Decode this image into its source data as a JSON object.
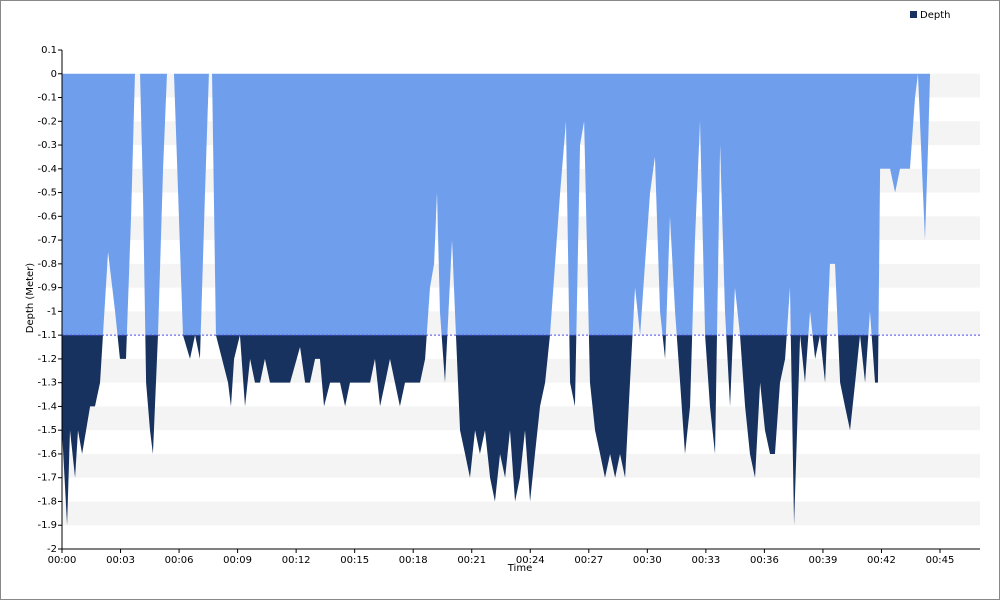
{
  "chart_data": {
    "type": "area",
    "x_label": "Time",
    "y_label": "Depth (Meter)",
    "legend": "top-right",
    "stripes": true,
    "threshold": -1.1,
    "threshold_color": "#4a4ae8",
    "above_threshold_color": "#6f9fec",
    "x": [
      0,
      0.26,
      0.41,
      0.67,
      0.82,
      1.03,
      1.44,
      1.69,
      1.95,
      2.36,
      2.72,
      2.97,
      3.28,
      3.54,
      3.74,
      4.0,
      4.15,
      4.31,
      4.51,
      4.66,
      4.92,
      5.18,
      5.38,
      5.74,
      5.95,
      6.2,
      6.56,
      6.82,
      7.07,
      7.33,
      7.53,
      7.69,
      7.89,
      8.2,
      8.51,
      8.66,
      8.82,
      9.12,
      9.38,
      9.64,
      9.89,
      10.15,
      10.4,
      10.66,
      11.17,
      11.69,
      12.2,
      12.46,
      12.71,
      12.97,
      13.22,
      13.43,
      13.74,
      14.25,
      14.51,
      14.76,
      15.79,
      16.04,
      16.3,
      16.56,
      16.81,
      17.32,
      17.58,
      17.84,
      18.09,
      18.35,
      18.61,
      18.86,
      19.07,
      19.22,
      19.37,
      19.63,
      19.99,
      20.14,
      20.4,
      20.66,
      20.91,
      21.17,
      21.42,
      21.68,
      21.94,
      22.19,
      22.45,
      22.71,
      22.96,
      23.22,
      23.47,
      23.73,
      23.99,
      24.24,
      24.5,
      24.76,
      25.01,
      25.53,
      25.83,
      26.04,
      26.29,
      26.55,
      26.76,
      27.06,
      27.32,
      27.58,
      27.83,
      28.09,
      28.35,
      28.6,
      28.86,
      29.11,
      29.37,
      29.63,
      29.88,
      30.14,
      30.39,
      30.65,
      30.91,
      31.16,
      31.42,
      31.68,
      31.93,
      32.19,
      32.44,
      32.7,
      32.96,
      33.21,
      33.47,
      33.73,
      33.98,
      34.24,
      34.49,
      34.75,
      35.01,
      35.26,
      35.52,
      35.78,
      36.03,
      36.29,
      36.54,
      36.8,
      37.06,
      37.31,
      37.52,
      37.83,
      38.08,
      38.34,
      38.6,
      38.85,
      39.11,
      39.36,
      39.62,
      39.88,
      40.13,
      40.39,
      40.65,
      40.9,
      41.16,
      41.41,
      41.67,
      41.82,
      41.93,
      42.18,
      42.44,
      42.7,
      42.95,
      43.46,
      43.72,
      43.87,
      44.23,
      44.39,
      44.49
    ],
    "series": [
      {
        "name": "Depth",
        "color": "#17325f",
        "values": [
          -1.5,
          -1.9,
          -1.5,
          -1.7,
          -1.5,
          -1.6,
          -1.4,
          -1.4,
          -1.3,
          -0.75,
          -1.0,
          -1.2,
          -1.2,
          -0.6,
          0,
          0,
          -0.5,
          -1.3,
          -1.5,
          -1.6,
          -1.1,
          -0.4,
          0,
          0,
          -0.5,
          -1.1,
          -1.2,
          -1.1,
          -1.2,
          -0.5,
          0,
          0,
          -1.1,
          -1.2,
          -1.3,
          -1.4,
          -1.2,
          -1.1,
          -1.4,
          -1.2,
          -1.3,
          -1.3,
          -1.2,
          -1.3,
          -1.3,
          -1.3,
          -1.15,
          -1.3,
          -1.3,
          -1.2,
          -1.2,
          -1.4,
          -1.3,
          -1.3,
          -1.4,
          -1.3,
          -1.3,
          -1.2,
          -1.4,
          -1.3,
          -1.2,
          -1.4,
          -1.3,
          -1.3,
          -1.3,
          -1.3,
          -1.2,
          -0.9,
          -0.8,
          -0.5,
          -1.0,
          -1.3,
          -0.7,
          -1.0,
          -1.5,
          -1.6,
          -1.7,
          -1.5,
          -1.6,
          -1.5,
          -1.7,
          -1.8,
          -1.6,
          -1.7,
          -1.5,
          -1.8,
          -1.7,
          -1.5,
          -1.8,
          -1.6,
          -1.4,
          -1.3,
          -1.1,
          -0.5,
          -0.2,
          -1.3,
          -1.4,
          -0.3,
          -0.2,
          -1.3,
          -1.5,
          -1.6,
          -1.7,
          -1.6,
          -1.7,
          -1.6,
          -1.7,
          -1.3,
          -0.9,
          -1.1,
          -0.8,
          -0.5,
          -0.35,
          -1.0,
          -1.2,
          -0.6,
          -1.0,
          -1.3,
          -1.6,
          -1.4,
          -0.7,
          -0.2,
          -1.1,
          -1.4,
          -1.6,
          -0.3,
          -1.0,
          -1.4,
          -0.9,
          -1.1,
          -1.4,
          -1.6,
          -1.7,
          -1.3,
          -1.5,
          -1.6,
          -1.6,
          -1.3,
          -1.2,
          -0.9,
          -1.9,
          -1.1,
          -1.3,
          -1.0,
          -1.2,
          -1.1,
          -1.3,
          -0.8,
          -0.8,
          -1.3,
          -1.4,
          -1.5,
          -1.3,
          -1.1,
          -1.3,
          -1.0,
          -1.3,
          -1.3,
          -0.4,
          -0.4,
          -0.4,
          -0.5,
          -0.4,
          -0.4,
          -0.1,
          0,
          -0.7,
          -0.3,
          0
        ]
      }
    ],
    "xlim": [
      0,
      47.05
    ],
    "xticks": [
      {
        "value": 0,
        "label": "00:00"
      },
      {
        "value": 3,
        "label": "00:03"
      },
      {
        "value": 6,
        "label": "00:06"
      },
      {
        "value": 9,
        "label": "00:09"
      },
      {
        "value": 12,
        "label": "00:12"
      },
      {
        "value": 15,
        "label": "00:15"
      },
      {
        "value": 18,
        "label": "00:18"
      },
      {
        "value": 21,
        "label": "00:21"
      },
      {
        "value": 24,
        "label": "00:24"
      },
      {
        "value": 27,
        "label": "00:27"
      },
      {
        "value": 30,
        "label": "00:30"
      },
      {
        "value": 33,
        "label": "00:33"
      },
      {
        "value": 36,
        "label": "00:36"
      },
      {
        "value": 39,
        "label": "00:39"
      },
      {
        "value": 42,
        "label": "00:42"
      },
      {
        "value": 45,
        "label": "00:45"
      }
    ],
    "ylim": [
      -2,
      0.1
    ],
    "yticks": [
      0.1,
      0,
      -0.1,
      -0.2,
      -0.3,
      -0.4,
      -0.5,
      -0.6,
      -0.7,
      -0.8,
      -0.9,
      -1,
      -1.1,
      -1.2,
      -1.3,
      -1.4,
      -1.5,
      -1.6,
      -1.7,
      -1.8,
      -1.9,
      -2
    ]
  }
}
